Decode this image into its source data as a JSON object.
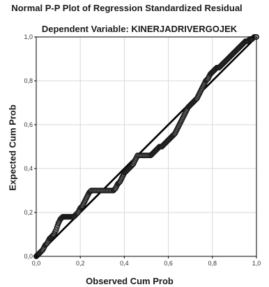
{
  "chart_data": {
    "type": "scatter",
    "title": "Normal P-P Plot of Regression Standardized Residual",
    "subtitle": "Dependent Variable: KINERJADRIVERGOJEK",
    "xlabel": "Observed Cum Prob",
    "ylabel": "Expected Cum Prob",
    "xlim": [
      0.0,
      1.0
    ],
    "ylim": [
      0.0,
      1.0
    ],
    "x_ticks": [
      "0,0",
      "0,2",
      "0,4",
      "0,6",
      "0,8",
      "1,0"
    ],
    "y_ticks": [
      "0,0",
      "0,2",
      "0,4",
      "0,6",
      "0,8",
      "1,0"
    ],
    "grid": true,
    "reference_line": [
      [
        0.0,
        0.0
      ],
      [
        1.0,
        1.0
      ]
    ],
    "series": [
      {
        "points": [
          [
            0.0,
            0.0
          ],
          [
            0.01,
            0.01
          ],
          [
            0.02,
            0.02
          ],
          [
            0.03,
            0.03
          ],
          [
            0.04,
            0.05
          ],
          [
            0.05,
            0.06
          ],
          [
            0.06,
            0.08
          ],
          [
            0.07,
            0.09
          ],
          [
            0.08,
            0.1
          ],
          [
            0.09,
            0.12
          ],
          [
            0.1,
            0.15
          ],
          [
            0.11,
            0.17
          ],
          [
            0.12,
            0.18
          ],
          [
            0.13,
            0.18
          ],
          [
            0.14,
            0.18
          ],
          [
            0.15,
            0.18
          ],
          [
            0.16,
            0.18
          ],
          [
            0.17,
            0.18
          ],
          [
            0.18,
            0.19
          ],
          [
            0.19,
            0.2
          ],
          [
            0.2,
            0.22
          ],
          [
            0.21,
            0.23
          ],
          [
            0.22,
            0.25
          ],
          [
            0.23,
            0.27
          ],
          [
            0.24,
            0.29
          ],
          [
            0.25,
            0.3
          ],
          [
            0.27,
            0.3
          ],
          [
            0.29,
            0.3
          ],
          [
            0.31,
            0.3
          ],
          [
            0.33,
            0.3
          ],
          [
            0.35,
            0.3
          ],
          [
            0.36,
            0.31
          ],
          [
            0.37,
            0.33
          ],
          [
            0.38,
            0.34
          ],
          [
            0.39,
            0.36
          ],
          [
            0.4,
            0.38
          ],
          [
            0.41,
            0.39
          ],
          [
            0.42,
            0.4
          ],
          [
            0.43,
            0.41
          ],
          [
            0.44,
            0.42
          ],
          [
            0.45,
            0.44
          ],
          [
            0.46,
            0.46
          ],
          [
            0.48,
            0.46
          ],
          [
            0.5,
            0.46
          ],
          [
            0.52,
            0.46
          ],
          [
            0.53,
            0.47
          ],
          [
            0.54,
            0.48
          ],
          [
            0.55,
            0.49
          ],
          [
            0.56,
            0.5
          ],
          [
            0.57,
            0.5
          ],
          [
            0.58,
            0.51
          ],
          [
            0.59,
            0.52
          ],
          [
            0.6,
            0.53
          ],
          [
            0.61,
            0.54
          ],
          [
            0.62,
            0.55
          ],
          [
            0.63,
            0.56
          ],
          [
            0.64,
            0.58
          ],
          [
            0.65,
            0.6
          ],
          [
            0.66,
            0.62
          ],
          [
            0.67,
            0.64
          ],
          [
            0.68,
            0.66
          ],
          [
            0.69,
            0.68
          ],
          [
            0.7,
            0.69
          ],
          [
            0.71,
            0.7
          ],
          [
            0.72,
            0.71
          ],
          [
            0.73,
            0.72
          ],
          [
            0.74,
            0.74
          ],
          [
            0.75,
            0.76
          ],
          [
            0.76,
            0.78
          ],
          [
            0.77,
            0.8
          ],
          [
            0.78,
            0.81
          ],
          [
            0.79,
            0.83
          ],
          [
            0.8,
            0.84
          ],
          [
            0.81,
            0.85
          ],
          [
            0.82,
            0.86
          ],
          [
            0.83,
            0.86
          ],
          [
            0.84,
            0.87
          ],
          [
            0.85,
            0.88
          ],
          [
            0.86,
            0.89
          ],
          [
            0.87,
            0.9
          ],
          [
            0.88,
            0.91
          ],
          [
            0.89,
            0.92
          ],
          [
            0.9,
            0.93
          ],
          [
            0.91,
            0.94
          ],
          [
            0.92,
            0.95
          ],
          [
            0.93,
            0.96
          ],
          [
            0.94,
            0.97
          ],
          [
            0.95,
            0.98
          ],
          [
            0.96,
            0.98
          ],
          [
            0.97,
            0.99
          ],
          [
            0.98,
            0.99
          ],
          [
            0.99,
            1.0
          ],
          [
            1.0,
            1.0
          ]
        ]
      }
    ],
    "colors": {
      "marker_fill": "#8c8c8c",
      "marker_stroke": "#1a1a1a",
      "reference_line": "#000000",
      "grid": "#d9d9d9",
      "frame": "#000000"
    }
  }
}
